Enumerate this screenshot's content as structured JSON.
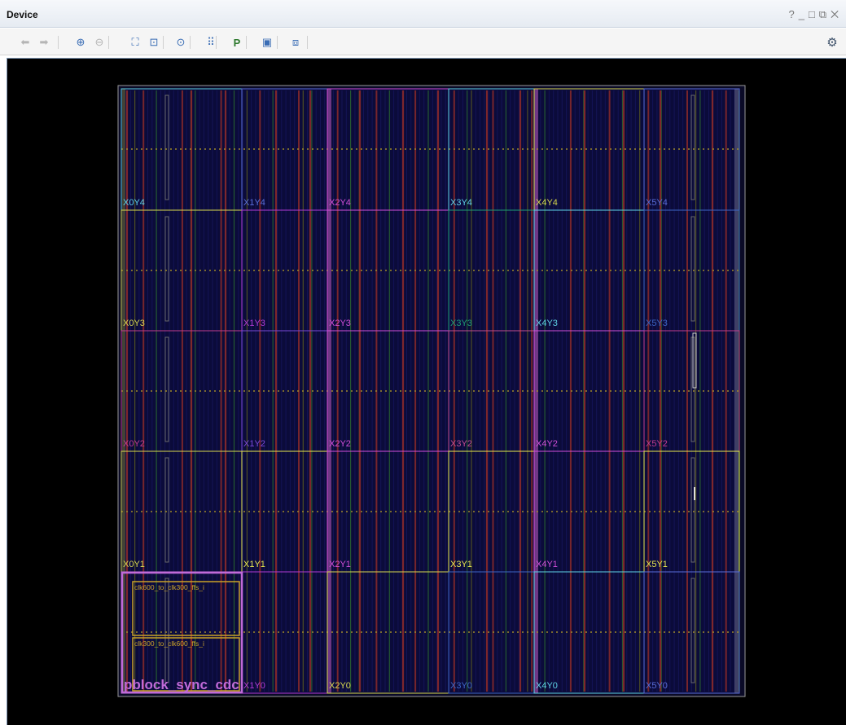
{
  "window": {
    "title": "Device",
    "controls": {
      "help": "?",
      "minimize": "_",
      "maximize": "□",
      "restore": "⧉",
      "close": "✕"
    }
  },
  "toolbar": {
    "buttons": [
      {
        "name": "back-button",
        "icon": "arrow-left-icon",
        "glyph": "⬅",
        "enabled": false
      },
      {
        "name": "forward-button",
        "icon": "arrow-right-icon",
        "glyph": "➡",
        "enabled": false
      },
      {
        "name": "zoom-in-button",
        "icon": "zoom-in-icon",
        "glyph": "⊕",
        "enabled": true
      },
      {
        "name": "zoom-out-button",
        "icon": "zoom-out-icon",
        "glyph": "⊖",
        "enabled": false
      },
      {
        "name": "zoom-fit-button",
        "icon": "zoom-fit-icon",
        "glyph": "⛶",
        "enabled": true
      },
      {
        "name": "zoom-selection-button",
        "icon": "zoom-selection-icon",
        "glyph": "⊡",
        "enabled": true
      },
      {
        "name": "auto-fit-selection-button",
        "icon": "crosshair-icon",
        "glyph": "⊙",
        "enabled": true
      },
      {
        "name": "routing-resources-button",
        "icon": "routing-icon",
        "glyph": "⠿",
        "enabled": true
      },
      {
        "name": "draw-pblock-button",
        "icon": "draw-pblock-icon",
        "glyph": "P",
        "enabled": true
      },
      {
        "name": "create-site-constraint-button",
        "icon": "site-constraint-icon",
        "glyph": "▣",
        "enabled": true
      },
      {
        "name": "device-options-button",
        "icon": "layers-icon",
        "glyph": "⧈",
        "enabled": true
      }
    ],
    "settings_icon": "gear-icon"
  },
  "device_view": {
    "background": "#000000",
    "die_border_color": "#9a9a9a",
    "columns": [
      "X0",
      "X1",
      "X2",
      "X3",
      "X4",
      "X5"
    ],
    "rows": [
      "Y4",
      "Y3",
      "Y2",
      "Y1",
      "Y0"
    ],
    "clock_regions": [
      {
        "label": "X0Y4",
        "color": "#5fd3e6"
      },
      {
        "label": "X1Y4",
        "color": "#5a6ed9"
      },
      {
        "label": "X2Y4",
        "color": "#d24fd8"
      },
      {
        "label": "X3Y4",
        "color": "#5fd3e6"
      },
      {
        "label": "X4Y4",
        "color": "#d8d84f"
      },
      {
        "label": "X5Y4",
        "color": "#5a6ed9"
      },
      {
        "label": "X0Y3",
        "color": "#d8d84f"
      },
      {
        "label": "X1Y3",
        "color": "#b23bd4"
      },
      {
        "label": "X2Y3",
        "color": "#d24fd8"
      },
      {
        "label": "X3Y3",
        "color": "#1e9e74"
      },
      {
        "label": "X4Y3",
        "color": "#5fd3e6"
      },
      {
        "label": "X5Y3",
        "color": "#3d66c4"
      },
      {
        "label": "X0Y2",
        "color": "#c23d8e"
      },
      {
        "label": "X1Y2",
        "color": "#7a48d6"
      },
      {
        "label": "X2Y2",
        "color": "#d24fd8"
      },
      {
        "label": "X3Y2",
        "color": "#c24d8f"
      },
      {
        "label": "X4Y2",
        "color": "#d24fd8"
      },
      {
        "label": "X5Y2",
        "color": "#c23d8e"
      },
      {
        "label": "X0Y1",
        "color": "#d8d84f"
      },
      {
        "label": "X1Y1",
        "color": "#e8e84f"
      },
      {
        "label": "X2Y1",
        "color": "#d24fd8"
      },
      {
        "label": "X3Y1",
        "color": "#e8e84f"
      },
      {
        "label": "X4Y1",
        "color": "#d24fd8"
      },
      {
        "label": "X5Y1",
        "color": "#e8e84f"
      },
      {
        "label": "X0Y0",
        "color": "#c06ad8"
      },
      {
        "label": "X1Y0",
        "color": "#b23bd4"
      },
      {
        "label": "X2Y0",
        "color": "#d8d84f"
      },
      {
        "label": "X3Y0",
        "color": "#3d66c4"
      },
      {
        "label": "X4Y0",
        "color": "#5fd3e6"
      },
      {
        "label": "X5Y0",
        "color": "#5a6ed9"
      }
    ],
    "pblock": {
      "label": "pblock_sync_cdc",
      "color": "#c06ad8"
    },
    "cells": [
      {
        "label": "clk600_to_clk300_ffs_i",
        "color": "#c9a227"
      },
      {
        "label": "clk300_to_clk600_ffs_i",
        "color": "#c9a227"
      }
    ]
  }
}
